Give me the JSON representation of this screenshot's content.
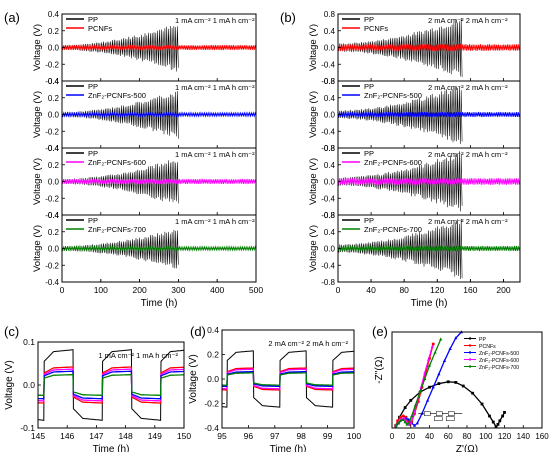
{
  "panel_labels": [
    "(a)",
    "(b)",
    "(c)",
    "(d)",
    "(e)"
  ],
  "colors": {
    "PP": "#000000",
    "PCNFs": "#ff0000",
    "ZnF2-PCNFs-500": "#0000ff",
    "ZnF2-PCNFs-600": "#ff00ff",
    "ZnF2-PCNFs-700": "#008000"
  },
  "chart_data": [
    {
      "id": "a",
      "type": "line",
      "xlabel": "Time (h)",
      "ylabel": "Voltage (V)",
      "xlim": [
        0,
        500
      ],
      "xticks": [
        0,
        100,
        200,
        300,
        400,
        500
      ],
      "condition": "1 mA cm⁻²   1 mA h cm⁻²",
      "subplots": [
        {
          "ylim": [
            -0.4,
            0.4
          ],
          "yticks": [
            0.4,
            0.2,
            0.0,
            -0.2,
            -0.4
          ],
          "legend": [
            "PP",
            "PCNFs"
          ],
          "series": [
            {
              "name": "PP",
              "x_end": 300,
              "amp_start": 0.03,
              "amp_end": 0.3
            },
            {
              "name": "PCNFs",
              "x_end": 500,
              "amp_start": 0.03,
              "amp_end": 0.03
            }
          ]
        },
        {
          "ylim": [
            -0.4,
            0.4
          ],
          "yticks": [
            0.4,
            0.2,
            0.0,
            -0.2,
            -0.4
          ],
          "legend": [
            "PP",
            "ZnF2-PCNFs-500"
          ],
          "series": [
            {
              "name": "PP",
              "x_end": 300,
              "amp_start": 0.03,
              "amp_end": 0.3
            },
            {
              "name": "ZnF2-PCNFs-500",
              "x_end": 500,
              "amp_start": 0.02,
              "amp_end": 0.02
            }
          ]
        },
        {
          "ylim": [
            -0.4,
            0.4
          ],
          "yticks": [
            0.4,
            0.2,
            0.0,
            -0.2,
            -0.4
          ],
          "legend": [
            "PP",
            "ZnF2-PCNFs-600"
          ],
          "series": [
            {
              "name": "PP",
              "x_end": 300,
              "amp_start": 0.03,
              "amp_end": 0.3
            },
            {
              "name": "ZnF2-PCNFs-600",
              "x_end": 500,
              "amp_start": 0.03,
              "amp_end": 0.03
            }
          ]
        },
        {
          "ylim": [
            -0.4,
            0.4
          ],
          "yticks": [
            0.4,
            0.2,
            0.0,
            -0.2,
            -0.4
          ],
          "legend": [
            "PP",
            "ZnF2-PCNFs-700"
          ],
          "series": [
            {
              "name": "PP",
              "x_end": 300,
              "amp_start": 0.03,
              "amp_end": 0.25
            },
            {
              "name": "ZnF2-PCNFs-700",
              "x_end": 500,
              "amp_start": 0.02,
              "amp_end": 0.02
            }
          ]
        }
      ]
    },
    {
      "id": "b",
      "type": "line",
      "xlabel": "Time (h)",
      "ylabel": "Voltage (V)",
      "xlim": [
        0,
        220
      ],
      "xticks": [
        0,
        40,
        80,
        120,
        160,
        200
      ],
      "condition": "2 mA cm⁻²   2 mA h cm⁻²",
      "subplots": [
        {
          "ylim": [
            -0.8,
            0.8
          ],
          "yticks": [
            0.8,
            0.4,
            0.0,
            -0.4,
            -0.8
          ],
          "legend": [
            "PP",
            "PCNFs"
          ],
          "series": [
            {
              "name": "PP",
              "x_end": 150,
              "amp_start": 0.1,
              "amp_end": 0.75
            },
            {
              "name": "PCNFs",
              "x_end": 220,
              "amp_start": 0.08,
              "amp_end": 0.08
            }
          ]
        },
        {
          "ylim": [
            -0.8,
            0.8
          ],
          "yticks": [
            0.8,
            0.4,
            0.0,
            -0.4,
            -0.8
          ],
          "legend": [
            "PP",
            "ZnF2-PCNFs-500"
          ],
          "series": [
            {
              "name": "PP",
              "x_end": 150,
              "amp_start": 0.1,
              "amp_end": 0.75
            },
            {
              "name": "ZnF2-PCNFs-500",
              "x_end": 220,
              "amp_start": 0.06,
              "amp_end": 0.06
            }
          ]
        },
        {
          "ylim": [
            -0.8,
            0.8
          ],
          "yticks": [
            0.8,
            0.4,
            0.0,
            -0.4,
            -0.8
          ],
          "legend": [
            "PP",
            "ZnF2-PCNFs-600"
          ],
          "series": [
            {
              "name": "PP",
              "x_end": 150,
              "amp_start": 0.1,
              "amp_end": 0.75
            },
            {
              "name": "ZnF2-PCNFs-600",
              "x_end": 220,
              "amp_start": 0.08,
              "amp_end": 0.08
            }
          ]
        },
        {
          "ylim": [
            -0.8,
            0.8
          ],
          "yticks": [
            0.8,
            0.4,
            0.0,
            -0.4,
            -0.8
          ],
          "legend": [
            "PP",
            "ZnF2-PCNFs-700"
          ],
          "series": [
            {
              "name": "PP",
              "x_end": 150,
              "amp_start": 0.1,
              "amp_end": 0.75
            },
            {
              "name": "ZnF2-PCNFs-700",
              "x_end": 220,
              "amp_start": 0.06,
              "amp_end": 0.06
            }
          ]
        }
      ]
    },
    {
      "id": "c",
      "type": "line",
      "xlabel": "Time (h)",
      "ylabel": "Voltage (V)",
      "xlim": [
        145,
        150
      ],
      "xticks": [
        145,
        146,
        147,
        148,
        149,
        150
      ],
      "ylim": [
        -0.1,
        0.1
      ],
      "yticks": [
        0.1,
        0.0,
        -0.1
      ],
      "condition": "1 mA cm⁻²   1 mA h cm⁻²",
      "period_h": 2,
      "phase_h": 0.2,
      "series": [
        {
          "name": "PP",
          "amplitude": 0.082
        },
        {
          "name": "PCNFs",
          "amplitude": 0.042
        },
        {
          "name": "ZnF2-PCNFs-600",
          "amplitude": 0.037
        },
        {
          "name": "ZnF2-PCNFs-500",
          "amplitude": 0.032
        },
        {
          "name": "ZnF2-PCNFs-700",
          "amplitude": 0.024
        }
      ]
    },
    {
      "id": "d",
      "type": "line",
      "xlabel": "Time (h)",
      "ylabel": "Voltage (V)",
      "xlim": [
        95,
        100
      ],
      "xticks": [
        95,
        96,
        97,
        98,
        99,
        100
      ],
      "ylim": [
        -0.4,
        0.4
      ],
      "yticks": [
        0.4,
        0.2,
        0.0,
        -0.2,
        -0.4
      ],
      "condition": "2 mA cm⁻²   2 mA h cm⁻²",
      "period_h": 2,
      "phase_h": 0.2,
      "series": [
        {
          "name": "PP",
          "amplitude": 0.23
        },
        {
          "name": "PCNFs",
          "amplitude": 0.09
        },
        {
          "name": "ZnF2-PCNFs-600",
          "amplitude": 0.08
        },
        {
          "name": "ZnF2-PCNFs-500",
          "amplitude": 0.06
        },
        {
          "name": "ZnF2-PCNFs-700",
          "amplitude": 0.05
        }
      ]
    },
    {
      "id": "e",
      "type": "line",
      "xlabel": "Z'(Ω)",
      "ylabel": "-Z''(Ω)",
      "xlim": [
        0,
        160
      ],
      "xticks": [
        0,
        20,
        40,
        60,
        80,
        100,
        120,
        140,
        160
      ],
      "ylim": [
        0,
        80
      ],
      "legend": [
        "PP",
        "PCNFs",
        "ZnF₂-PCNFs-500",
        "ZnF₂-PCNFs-600",
        "ZnF₂-PCNFs-700"
      ],
      "series": [
        {
          "name": "PP",
          "x": [
            4,
            8,
            14,
            20,
            30,
            40,
            50,
            60,
            68,
            76,
            86,
            96,
            104,
            108,
            111,
            113,
            115,
            118,
            120
          ],
          "y": [
            2,
            9,
            17,
            23,
            30,
            34,
            37,
            38.5,
            38,
            35,
            29,
            20,
            10,
            5,
            1,
            3,
            6,
            10,
            13
          ]
        },
        {
          "name": "PCNFs",
          "x": [
            4,
            6,
            9,
            12,
            15,
            17,
            19,
            21,
            24,
            28,
            32,
            36,
            40,
            44
          ],
          "y": [
            2,
            6,
            9,
            10,
            9,
            6,
            3,
            5,
            12,
            22,
            34,
            46,
            58,
            70
          ]
        },
        {
          "name": "ZnF2-PCNFs-500",
          "x": [
            4,
            7,
            11,
            15,
            18,
            21,
            24,
            27,
            32,
            38,
            44,
            50,
            56,
            62,
            68,
            74
          ],
          "y": [
            1,
            4,
            7,
            8,
            7,
            4,
            2,
            4,
            12,
            23,
            34,
            45,
            56,
            66,
            75,
            80
          ]
        },
        {
          "name": "ZnF2-PCNFs-600",
          "x": [
            4,
            7,
            10,
            13,
            16,
            18,
            20,
            23,
            27,
            31,
            35,
            39,
            43
          ],
          "y": [
            2,
            5,
            8,
            8,
            5,
            3,
            4,
            11,
            22,
            34,
            46,
            57,
            68
          ]
        },
        {
          "name": "ZnF2-PCNFs-700",
          "x": [
            4,
            6,
            9,
            12,
            14,
            16,
            18,
            21,
            25,
            30,
            35,
            40,
            46,
            52
          ],
          "y": [
            1,
            4,
            6,
            7,
            5,
            3,
            4,
            10,
            19,
            30,
            41,
            52,
            63,
            74
          ]
        }
      ]
    }
  ]
}
